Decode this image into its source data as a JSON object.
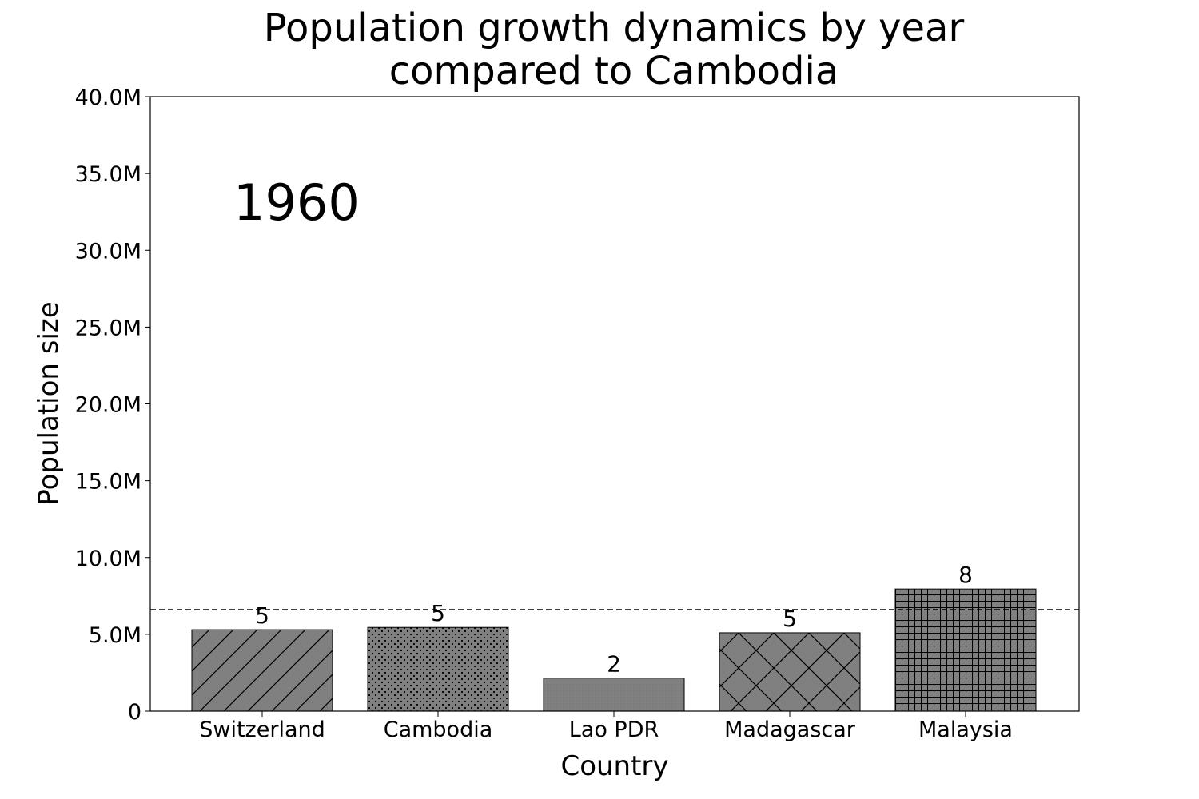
{
  "chart_data": {
    "type": "bar",
    "title_lines": [
      "Population growth dynamics by year",
      "compared to Cambodia"
    ],
    "xlabel": "Country",
    "ylabel": "Population size",
    "year_label": "1960",
    "categories": [
      "Switzerland",
      "Cambodia",
      "Lao PDR",
      "Madagascar",
      "Malaysia"
    ],
    "values": [
      5300000,
      5450000,
      2150000,
      5100000,
      7950000
    ],
    "value_labels": [
      "5",
      "5",
      "2",
      "5",
      "8"
    ],
    "hatches": [
      "diagonal",
      "dots",
      "fine-dots",
      "crosshatch",
      "grid"
    ],
    "reference_line": 6600000,
    "reference_line_style": "dashed",
    "ylim": [
      0,
      40000000
    ],
    "yticks": [
      0,
      5000000,
      10000000,
      15000000,
      20000000,
      25000000,
      30000000,
      35000000,
      40000000
    ],
    "ytick_labels": [
      "0",
      "5.0M",
      "10.0M",
      "15.0M",
      "20.0M",
      "25.0M",
      "30.0M",
      "35.0M",
      "40.0M"
    ],
    "grid": false,
    "bar_color": "#808080",
    "edge_color": "#000000"
  }
}
